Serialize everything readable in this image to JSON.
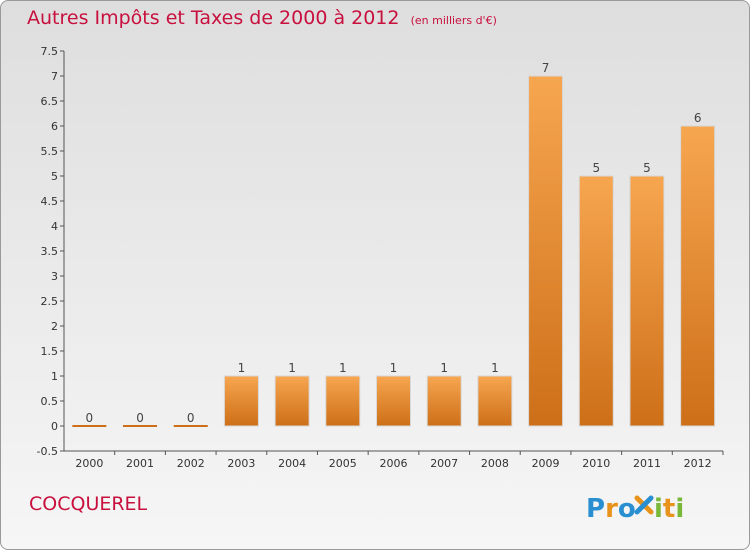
{
  "title": "Autres Impôts et Taxes de 2000 à 2012",
  "unit_note": "(en milliers d'€)",
  "commune": "COCQUEREL",
  "logo_text": "Proxiti",
  "colors": {
    "title": "#c8103e",
    "bar_top": "#f7a650",
    "bar_bottom": "#cd6f18",
    "axis": "#555555"
  },
  "chart_data": {
    "type": "bar",
    "categories": [
      "2000",
      "2001",
      "2002",
      "2003",
      "2004",
      "2005",
      "2006",
      "2007",
      "2008",
      "2009",
      "2010",
      "2011",
      "2012"
    ],
    "values": [
      0,
      0,
      0,
      1,
      1,
      1,
      1,
      1,
      1,
      7,
      5,
      5,
      6
    ],
    "data_labels": [
      "0",
      "0",
      "0",
      "1",
      "1",
      "1",
      "1",
      "1",
      "1",
      "7",
      "5",
      "5",
      "6"
    ],
    "yticks": [
      "-0.5",
      "0",
      "0.5",
      "1",
      "1.5",
      "2",
      "2.5",
      "3",
      "3.5",
      "4",
      "4.5",
      "5",
      "5.5",
      "6",
      "6.5",
      "7",
      "7.5"
    ],
    "ylim": [
      -0.5,
      7.5
    ],
    "xlabel": "",
    "ylabel": "",
    "grid": false,
    "legend": "none"
  }
}
